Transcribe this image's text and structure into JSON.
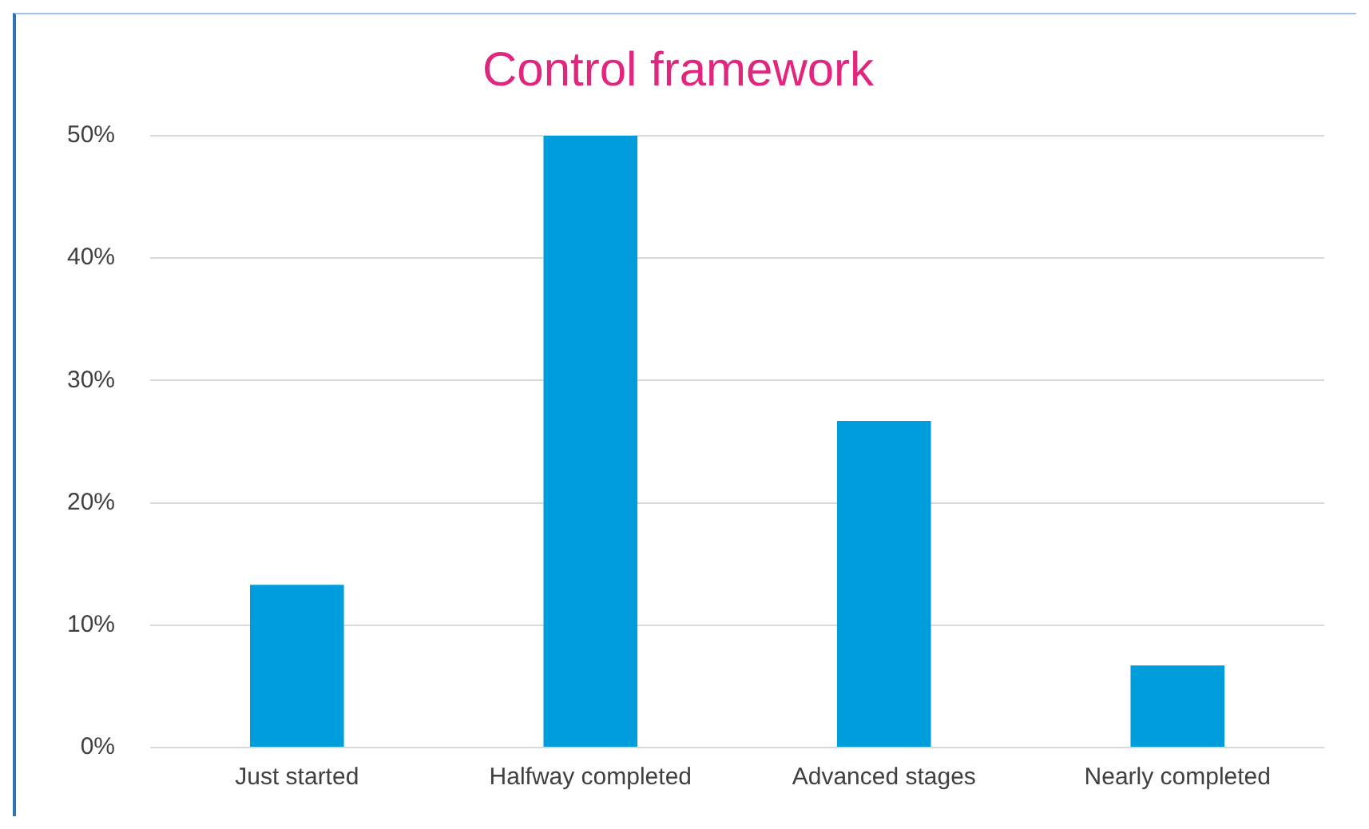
{
  "chart_data": {
    "type": "bar",
    "title": "Control framework",
    "categories": [
      "Just started",
      "Halfway completed",
      "Advanced stages",
      "Nearly completed"
    ],
    "values": [
      13.3,
      50,
      26.7,
      6.7
    ],
    "color": "#009ddd",
    "ylim": [
      0,
      50
    ],
    "yticks": [
      {
        "value": 0,
        "label": "0%"
      },
      {
        "value": 10,
        "label": "10%"
      },
      {
        "value": 20,
        "label": "20%"
      },
      {
        "value": 30,
        "label": "30%"
      },
      {
        "value": 40,
        "label": "40%"
      },
      {
        "value": 50,
        "label": "50%"
      }
    ],
    "grid": "y"
  }
}
